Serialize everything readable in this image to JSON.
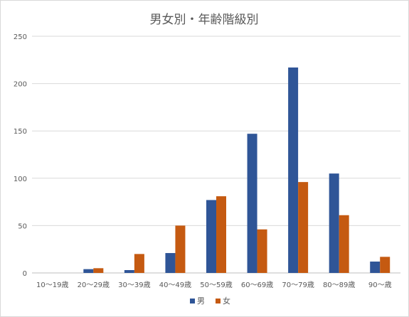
{
  "chart_data": {
    "type": "bar",
    "title": "男女別・年齢階級別",
    "categories": [
      "10～19歳",
      "20～29歳",
      "30～39歳",
      "40～49歳",
      "50～59歳",
      "60～69歳",
      "70～79歳",
      "80～89歳",
      "90～歳"
    ],
    "series": [
      {
        "name": "男",
        "color": "#2F5597",
        "values": [
          0,
          4,
          3,
          21,
          77,
          147,
          217,
          105,
          12
        ]
      },
      {
        "name": "女",
        "color": "#C55A11",
        "values": [
          0,
          5,
          20,
          50,
          81,
          46,
          96,
          61,
          17
        ]
      }
    ],
    "yticks": [
      0,
      50,
      100,
      150,
      200,
      250
    ],
    "ylim": [
      0,
      250
    ],
    "grid": true,
    "legend": "bottom"
  }
}
